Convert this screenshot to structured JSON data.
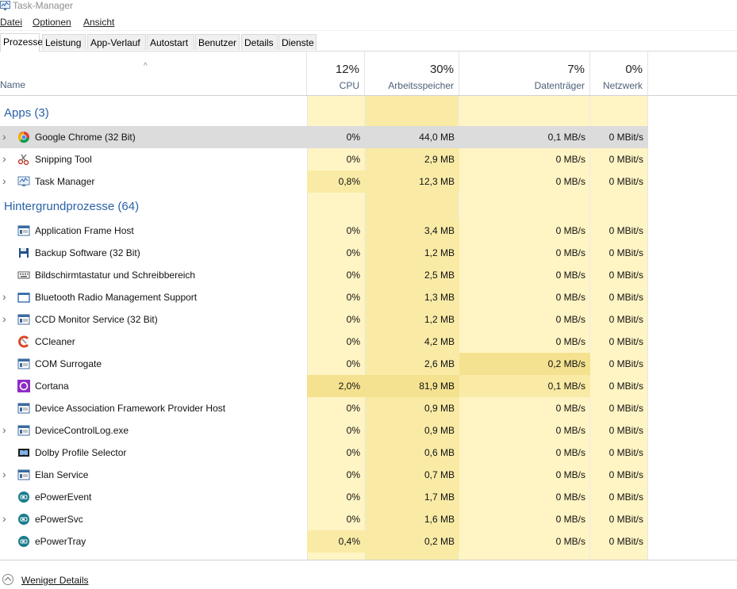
{
  "window": {
    "title": "Task-Manager"
  },
  "menu": [
    "Datei",
    "Optionen",
    "Ansicht"
  ],
  "tabs": [
    "Prozesse",
    "Leistung",
    "App-Verlauf",
    "Autostart",
    "Benutzer",
    "Details",
    "Dienste"
  ],
  "columns": {
    "name": "Name",
    "cpu": {
      "pct": "12%",
      "label": "CPU"
    },
    "mem": {
      "pct": "30%",
      "label": "Arbeitsspeicher"
    },
    "disk": {
      "pct": "7%",
      "label": "Datenträger"
    },
    "net": {
      "pct": "0%",
      "label": "Netzwerk"
    }
  },
  "groups": [
    {
      "title": "Apps (3)",
      "rows": [
        {
          "name": "Google Chrome (32 Bit)",
          "icon": "chrome-icon",
          "expand": true,
          "cpu": "0%",
          "mem": "44,0 MB",
          "disk": "0,1 MB/s",
          "net": "0 MBit/s",
          "selected": true
        },
        {
          "name": "Snipping Tool",
          "icon": "snipping-tool-icon",
          "expand": true,
          "cpu": "0%",
          "mem": "2,9 MB",
          "disk": "0 MB/s",
          "net": "0 MBit/s"
        },
        {
          "name": "Task Manager",
          "icon": "task-manager-icon",
          "expand": true,
          "cpu": "0,8%",
          "mem": "12,3 MB",
          "disk": "0 MB/s",
          "net": "0 MBit/s"
        }
      ]
    },
    {
      "title": "Hintergrundprozesse (64)",
      "rows": [
        {
          "name": "Application Frame Host",
          "icon": "app-window-icon",
          "expand": false,
          "cpu": "0%",
          "mem": "3,4 MB",
          "disk": "0 MB/s",
          "net": "0 MBit/s"
        },
        {
          "name": "Backup Software (32 Bit)",
          "icon": "floppy-disk-icon",
          "expand": false,
          "cpu": "0%",
          "mem": "1,2 MB",
          "disk": "0 MB/s",
          "net": "0 MBit/s"
        },
        {
          "name": "Bildschirmtastatur und Schreibbereich",
          "icon": "keyboard-icon",
          "expand": false,
          "cpu": "0%",
          "mem": "2,5 MB",
          "disk": "0 MB/s",
          "net": "0 MBit/s"
        },
        {
          "name": "Bluetooth Radio Management Support",
          "icon": "window-icon",
          "expand": true,
          "cpu": "0%",
          "mem": "1,3 MB",
          "disk": "0 MB/s",
          "net": "0 MBit/s"
        },
        {
          "name": "CCD Monitor Service (32 Bit)",
          "icon": "app-window-icon",
          "expand": true,
          "cpu": "0%",
          "mem": "1,2 MB",
          "disk": "0 MB/s",
          "net": "0 MBit/s"
        },
        {
          "name": "CCleaner",
          "icon": "ccleaner-icon",
          "expand": false,
          "cpu": "0%",
          "mem": "4,2 MB",
          "disk": "0 MB/s",
          "net": "0 MBit/s"
        },
        {
          "name": "COM Surrogate",
          "icon": "app-window-icon",
          "expand": false,
          "cpu": "0%",
          "mem": "2,6 MB",
          "disk": "0,2 MB/s",
          "net": "0 MBit/s"
        },
        {
          "name": "Cortana",
          "icon": "cortana-icon",
          "expand": false,
          "cpu": "2,0%",
          "mem": "81,9 MB",
          "disk": "0,1 MB/s",
          "net": "0 MBit/s"
        },
        {
          "name": "Device Association Framework Provider Host",
          "icon": "app-window-icon",
          "expand": false,
          "cpu": "0%",
          "mem": "0,9 MB",
          "disk": "0 MB/s",
          "net": "0 MBit/s"
        },
        {
          "name": "DeviceControlLog.exe",
          "icon": "app-window-icon",
          "expand": true,
          "cpu": "0%",
          "mem": "0,9 MB",
          "disk": "0 MB/s",
          "net": "0 MBit/s"
        },
        {
          "name": "Dolby Profile Selector",
          "icon": "dolby-icon",
          "expand": false,
          "cpu": "0%",
          "mem": "0,6 MB",
          "disk": "0 MB/s",
          "net": "0 MBit/s"
        },
        {
          "name": "Elan Service",
          "icon": "app-window-icon",
          "expand": true,
          "cpu": "0%",
          "mem": "0,7 MB",
          "disk": "0 MB/s",
          "net": "0 MBit/s"
        },
        {
          "name": "ePowerEvent",
          "icon": "epower-icon",
          "expand": false,
          "cpu": "0%",
          "mem": "1,7 MB",
          "disk": "0 MB/s",
          "net": "0 MBit/s"
        },
        {
          "name": "ePowerSvc",
          "icon": "epower-icon",
          "expand": true,
          "cpu": "0%",
          "mem": "1,6 MB",
          "disk": "0 MB/s",
          "net": "0 MBit/s"
        },
        {
          "name": "ePowerTray",
          "icon": "epower-icon",
          "expand": false,
          "cpu": "0,4%",
          "mem": "0,2 MB",
          "disk": "0 MB/s",
          "net": "0 MBit/s"
        }
      ]
    }
  ],
  "footer": {
    "label": "Weniger Details"
  },
  "colors": {
    "heat_light": "#fff4c4",
    "heat_medium": "#f9eba6",
    "heat_strong": "#f4e290",
    "accent": "#2a62a8",
    "selected": "#dcdcdc"
  }
}
